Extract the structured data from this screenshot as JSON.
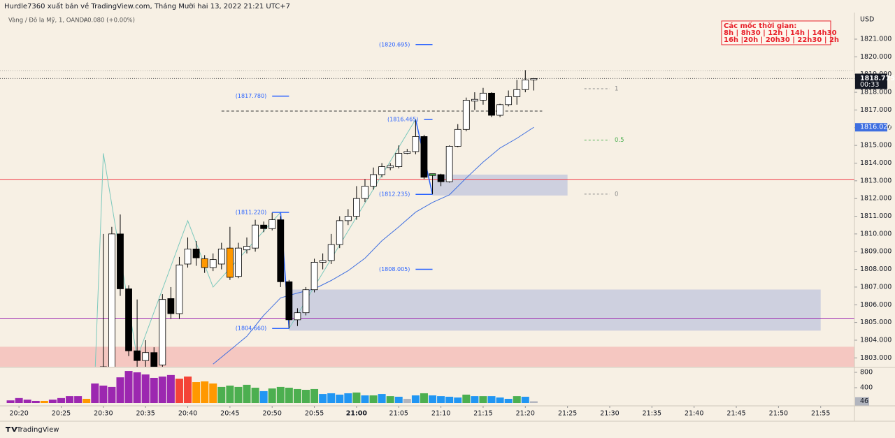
{
  "header": {
    "publisher": "Hurdle7360 xuất bản về TradingView.com, Tháng Mười hai 13, 2022 21:21 UTC+7",
    "symbol": "Vàng / Đô la Mỹ, 1, OANDA",
    "change": "+0.080 (+0.00%)"
  },
  "note": {
    "title": "Các mốc thời gian:",
    "lines": [
      "8h | 8h30 | 12h | 14h | 14h30",
      "16h |20h | 20h30 | 22h30 | 2h"
    ]
  },
  "footer": {
    "brand": "TradingView"
  },
  "chart_data": [
    {
      "type": "candlestick",
      "unit": "USD",
      "countdown": "00:33",
      "xlim": [
        "20:18",
        "21:59"
      ],
      "xticks": [
        "20:20",
        "20:25",
        "20:30",
        "20:35",
        "20:40",
        "20:45",
        "20:50",
        "20:55",
        "21:00",
        "21:05",
        "21:10",
        "21:15",
        "21:20",
        "21:25",
        "21:30",
        "21:35",
        "21:40",
        "21:45",
        "21:50",
        "21:55"
      ],
      "ylim": [
        1802.5,
        1822.5
      ],
      "yticks": [
        {
          "value": 1803,
          "label": "1803.000"
        },
        {
          "value": 1804,
          "label": "1804.000"
        },
        {
          "value": 1805,
          "label": "1805.000"
        },
        {
          "value": 1806,
          "label": "1806.000"
        },
        {
          "value": 1807,
          "label": "1807.000"
        },
        {
          "value": 1808,
          "label": "1808.000"
        },
        {
          "value": 1809,
          "label": "1809.000"
        },
        {
          "value": 1810,
          "label": "1810.000"
        },
        {
          "value": 1811,
          "label": "1811.000"
        },
        {
          "value": 1812,
          "label": "1812.000"
        },
        {
          "value": 1813,
          "label": "1813.000"
        },
        {
          "value": 1814,
          "label": "1814.000"
        },
        {
          "value": 1815,
          "label": "1815.000"
        },
        {
          "value": 1816,
          "label": "1816.000"
        },
        {
          "value": 1817,
          "label": "1817.000"
        },
        {
          "value": 1818,
          "label": "1818.000"
        },
        {
          "value": 1819,
          "label": "1819.000"
        },
        {
          "value": 1820,
          "label": "1820.000"
        },
        {
          "value": 1821,
          "label": "1821.000"
        }
      ],
      "grid": false,
      "up_color": "#ffffff",
      "down_color": "#000000",
      "x": [
        "20:30",
        "20:31",
        "20:32",
        "20:33",
        "20:34",
        "20:35",
        "20:36",
        "20:37",
        "20:38",
        "20:39",
        "20:40",
        "20:41",
        "20:42",
        "20:43",
        "20:44",
        "20:45",
        "20:46",
        "20:47",
        "20:48",
        "20:49",
        "20:50",
        "20:51",
        "20:52",
        "20:53",
        "20:54",
        "20:55",
        "20:56",
        "20:57",
        "20:58",
        "20:59",
        "21:00",
        "21:01",
        "21:02",
        "21:03",
        "21:04",
        "21:05",
        "21:06",
        "21:07",
        "21:08",
        "21:09",
        "21:10",
        "21:11",
        "21:12",
        "21:13",
        "21:14",
        "21:15",
        "21:16",
        "21:17",
        "21:18",
        "21:19",
        "21:20",
        "21:21"
      ],
      "open": [
        1802.5,
        1802.0,
        1810.0,
        1806.9,
        1803.4,
        1802.85,
        1803.3,
        1802.6,
        1806.35,
        1805.5,
        1808.3,
        1809.15,
        1808.6,
        1808.1,
        1808.3,
        1809.2,
        1807.6,
        1809.1,
        1809.2,
        1810.5,
        1810.3,
        1810.8,
        1807.3,
        1805.15,
        1805.55,
        1806.85,
        1808.4,
        1808.5,
        1809.4,
        1810.75,
        1811.0,
        1812.0,
        1812.7,
        1813.35,
        1813.75,
        1813.8,
        1814.55,
        1814.65,
        1815.5,
        1813.3,
        1813.35,
        1812.95,
        1814.95,
        1815.9,
        1817.5,
        1817.55,
        1817.95,
        1816.7,
        1817.3,
        1817.75,
        1818.15,
        1818.7
      ],
      "high": [
        1810.0,
        1810.4,
        1811.1,
        1807.1,
        1806.3,
        1804.0,
        1803.6,
        1806.6,
        1807.0,
        1808.7,
        1809.8,
        1809.6,
        1808.8,
        1808.9,
        1809.5,
        1810.4,
        1809.5,
        1809.8,
        1810.8,
        1810.7,
        1811.2,
        1811.0,
        1807.4,
        1805.8,
        1807.0,
        1808.6,
        1808.9,
        1810.0,
        1811.0,
        1811.4,
        1812.7,
        1813.1,
        1813.75,
        1814.0,
        1814.0,
        1815.0,
        1814.8,
        1816.465,
        1815.6,
        1813.4,
        1813.4,
        1815.0,
        1816.2,
        1817.7,
        1818.0,
        1818.25,
        1818.0,
        1817.35,
        1818.1,
        1818.7,
        1819.25,
        1818.8
      ],
      "low": [
        1801.0,
        1801.5,
        1806.5,
        1803.1,
        1802.5,
        1802.5,
        1802.0,
        1802.0,
        1805.2,
        1805.2,
        1808.1,
        1808.2,
        1807.8,
        1807.9,
        1808.0,
        1807.4,
        1807.5,
        1808.9,
        1809.0,
        1810.1,
        1810.2,
        1807.0,
        1804.66,
        1804.8,
        1805.4,
        1806.7,
        1808.0,
        1808.3,
        1809.2,
        1810.5,
        1810.8,
        1811.8,
        1812.5,
        1813.2,
        1813.6,
        1813.7,
        1814.5,
        1814.5,
        1813.1,
        1812.235,
        1812.7,
        1812.9,
        1814.9,
        1815.8,
        1817.0,
        1817.3,
        1816.6,
        1816.6,
        1817.2,
        1817.3,
        1818.0,
        1818.1
      ],
      "close": [
        1802.2,
        1810.0,
        1806.9,
        1803.4,
        1802.85,
        1803.3,
        1802.5,
        1806.3,
        1805.5,
        1808.25,
        1809.15,
        1808.65,
        1808.1,
        1808.55,
        1809.15,
        1807.55,
        1809.2,
        1809.3,
        1810.5,
        1810.3,
        1810.8,
        1807.3,
        1805.15,
        1805.55,
        1806.85,
        1808.4,
        1808.5,
        1809.4,
        1810.75,
        1811.0,
        1812.0,
        1812.7,
        1813.35,
        1813.8,
        1813.85,
        1814.55,
        1814.65,
        1815.5,
        1813.2,
        1813.4,
        1812.95,
        1814.95,
        1815.9,
        1817.55,
        1817.6,
        1817.95,
        1816.7,
        1817.3,
        1817.75,
        1818.15,
        1818.7,
        1818.775
      ],
      "highlights": [
        {
          "x": "20:42",
          "color": "#ff9800"
        },
        {
          "x": "20:45",
          "color": "#ff9800"
        },
        {
          "x": "21:09",
          "color": "#4caf50"
        }
      ],
      "zones": [
        {
          "from": 1803.63,
          "to": 1802.0,
          "color": "rgba(242,54,69,0.22)"
        },
        {
          "from": 1813.35,
          "to": 1812.17,
          "x": [
            "21:09",
            "21:25"
          ],
          "color": "rgba(120,140,215,0.32)"
        },
        {
          "from": 1806.86,
          "to": 1804.54,
          "x": [
            "20:52",
            "21:55"
          ],
          "color": "rgba(120,140,215,0.32)"
        }
      ],
      "hlines": [
        {
          "value": 1813.08,
          "color": "#f23645",
          "style": "solid"
        },
        {
          "value": 1805.24,
          "color": "#9c27b0",
          "style": "solid"
        },
        {
          "value": 1819.22,
          "color": "#b0aca4",
          "style": "dotted"
        },
        {
          "value": 1818.775,
          "color": "#555555",
          "style": "dotted"
        },
        {
          "value": 1816.94,
          "x": [
            "20:44",
            "21:22"
          ],
          "color": "#333333",
          "style": "dashed"
        }
      ],
      "lines": [
        {
          "color": "#7cc9bd",
          "width": 1,
          "x": [
            "20:29",
            "20:30",
            "20:34",
            "20:40",
            "20:43",
            "20:51",
            "20:52",
            "21:07",
            "21:09"
          ],
          "values": [
            1802.0,
            1814.55,
            1803.0,
            1810.75,
            1807.0,
            1811.22,
            1804.66,
            1816.465,
            1812.235
          ]
        },
        {
          "color": "#2962ff",
          "width": 1.5,
          "x": [
            "20:51",
            "20:52"
          ],
          "values": [
            1811.22,
            1804.66
          ]
        },
        {
          "color": "#2962ff",
          "width": 1.5,
          "x": [
            "21:07",
            "21:09"
          ],
          "values": [
            1816.465,
            1812.235
          ]
        },
        {
          "color": "#3f6fe0",
          "width": 1,
          "x": [
            "20:43",
            "20:45",
            "20:47",
            "20:49",
            "20:51",
            "20:53",
            "20:55",
            "20:57",
            "20:59",
            "21:01",
            "21:03",
            "21:05",
            "21:07",
            "21:09",
            "21:11",
            "21:13",
            "21:15",
            "21:17",
            "21:19",
            "21:21"
          ],
          "values": [
            1802.65,
            1803.43,
            1804.22,
            1805.4,
            1806.39,
            1806.66,
            1806.9,
            1807.37,
            1807.92,
            1808.63,
            1809.61,
            1810.4,
            1811.23,
            1811.78,
            1812.21,
            1813.16,
            1814.06,
            1814.85,
            1815.4,
            1816.022
          ]
        }
      ],
      "price_labels": [
        {
          "value": 1820.695,
          "label": "(1820.695)",
          "x": [
            "21:07",
            "21:09"
          ]
        },
        {
          "value": 1817.78,
          "label": "(1817.780)",
          "x": [
            "20:50",
            "20:52"
          ]
        },
        {
          "value": 1816.465,
          "label": "(1816.465)",
          "x": [
            "21:08",
            "21:09"
          ]
        },
        {
          "value": 1812.235,
          "label": "(1812.235)",
          "x": [
            "21:07",
            "21:09"
          ]
        },
        {
          "value": 1811.22,
          "label": "(1811.220)",
          "x": [
            "20:50",
            "20:52"
          ]
        },
        {
          "value": 1808.005,
          "label": "(1808.005)",
          "x": [
            "21:07",
            "21:09"
          ]
        },
        {
          "value": 1804.66,
          "label": "(1804.660)",
          "x": [
            "20:50",
            "20:52"
          ]
        }
      ],
      "fib": {
        "x": [
          "21:27",
          "21:30"
        ],
        "levels": [
          {
            "value": 1818.2,
            "label": "1",
            "color": "#8a8a8a"
          },
          {
            "value": 1815.3,
            "label": "0.5",
            "color": "#4caf50"
          },
          {
            "value": 1812.25,
            "label": "0",
            "color": "#8a8a8a"
          }
        ]
      }
    },
    {
      "type": "bar",
      "ylim": [
        0,
        900
      ],
      "yticks": [
        400,
        800
      ],
      "x": [
        "20:19",
        "20:20",
        "20:21",
        "20:22",
        "20:23",
        "20:24",
        "20:25",
        "20:26",
        "20:27",
        "20:28",
        "20:29",
        "20:30",
        "20:31",
        "20:32",
        "20:33",
        "20:34",
        "20:35",
        "20:36",
        "20:37",
        "20:38",
        "20:39",
        "20:40",
        "20:41",
        "20:42",
        "20:43",
        "20:44",
        "20:45",
        "20:46",
        "20:47",
        "20:48",
        "20:49",
        "20:50",
        "20:51",
        "20:52",
        "20:53",
        "20:54",
        "20:55",
        "20:56",
        "20:57",
        "20:58",
        "20:59",
        "21:00",
        "21:01",
        "21:02",
        "21:03",
        "21:04",
        "21:05",
        "21:06",
        "21:07",
        "21:08",
        "21:09",
        "21:10",
        "21:11",
        "21:12",
        "21:13",
        "21:14",
        "21:15",
        "21:16",
        "21:17",
        "21:18",
        "21:19",
        "21:20",
        "21:21"
      ],
      "values": [
        70,
        130,
        90,
        55,
        55,
        90,
        130,
        180,
        180,
        110,
        510,
        455,
        420,
        670,
        835,
        800,
        745,
        655,
        690,
        730,
        635,
        690,
        545,
        565,
        510,
        420,
        455,
        420,
        475,
        400,
        310,
        380,
        420,
        400,
        365,
        345,
        365,
        235,
        255,
        220,
        255,
        275,
        200,
        200,
        235,
        180,
        165,
        110,
        200,
        255,
        200,
        180,
        165,
        145,
        220,
        180,
        180,
        180,
        145,
        110,
        180,
        165,
        46
      ],
      "colors": [
        "#9c27b0",
        "#9c27b0",
        "#9c27b0",
        "#9c27b0",
        "#ff9800",
        "#9c27b0",
        "#9c27b0",
        "#9c27b0",
        "#9c27b0",
        "#ff9800",
        "#9c27b0",
        "#9c27b0",
        "#9c27b0",
        "#9c27b0",
        "#9c27b0",
        "#9c27b0",
        "#9c27b0",
        "#9c27b0",
        "#9c27b0",
        "#9c27b0",
        "#f44336",
        "#f44336",
        "#ff9800",
        "#ff9800",
        "#ff9800",
        "#4caf50",
        "#4caf50",
        "#4caf50",
        "#4caf50",
        "#4caf50",
        "#2196f3",
        "#4caf50",
        "#4caf50",
        "#4caf50",
        "#4caf50",
        "#4caf50",
        "#4caf50",
        "#2196f3",
        "#2196f3",
        "#2196f3",
        "#2196f3",
        "#4caf50",
        "#2196f3",
        "#4caf50",
        "#2196f3",
        "#4caf50",
        "#2196f3",
        "#b2b5be",
        "#2196f3",
        "#4caf50",
        "#2196f3",
        "#2196f3",
        "#2196f3",
        "#2196f3",
        "#4caf50",
        "#2196f3",
        "#4caf50",
        "#2196f3",
        "#2196f3",
        "#2196f3",
        "#4caf50",
        "#2196f3",
        "#b2b5be"
      ]
    }
  ]
}
